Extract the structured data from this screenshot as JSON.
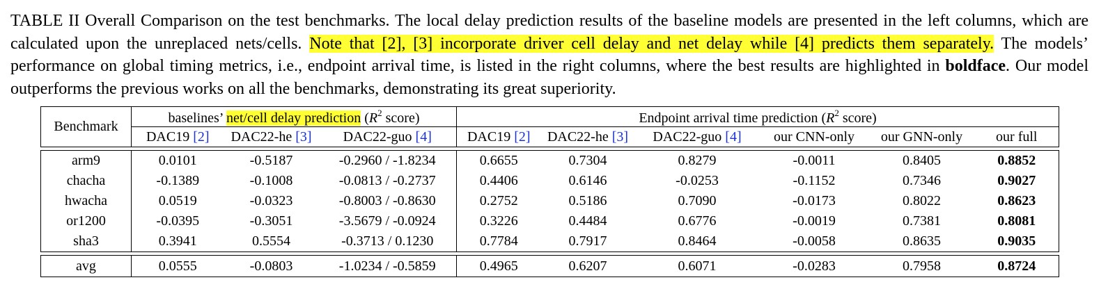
{
  "caption": {
    "part1": "TABLE II Overall Comparison on the test benchmarks. The local delay prediction results of the baseline models are presented in the left columns, which are calculated upon the unreplaced nets/cells. ",
    "highlight": "Note that [2], [3] incorporate driver cell delay and net delay while [4] predicts them separately.",
    "part2": " The models’ performance on global timing metrics, i.e., endpoint arrival time, is listed in the right columns, where the best results are highlighted in ",
    "bold": "boldface",
    "part3": ". Our model outperforms the previous works on all the benchmarks, demonstrating its great superiority."
  },
  "table": {
    "benchmark_header": "Benchmark",
    "group1": {
      "prefix": "baselines’ ",
      "highlight": "net/cell delay prediction",
      "suffix_open": " (",
      "r": "R",
      "sup": "2",
      "suffix_close": " score)"
    },
    "group2": {
      "prefix": "Endpoint arrival time prediction (",
      "r": "R",
      "sup": "2",
      "suffix_close": " score)"
    },
    "columns": [
      {
        "name": "DAC19 ",
        "cite": "[2]"
      },
      {
        "name": "DAC22-he ",
        "cite": "[3]"
      },
      {
        "name": "DAC22-guo ",
        "cite": "[4]"
      },
      {
        "name": "DAC19 ",
        "cite": "[2]"
      },
      {
        "name": "DAC22-he ",
        "cite": "[3]"
      },
      {
        "name": "DAC22-guo ",
        "cite": "[4]"
      },
      {
        "name": "our CNN-only",
        "cite": ""
      },
      {
        "name": "our GNN-only",
        "cite": ""
      },
      {
        "name": "our full",
        "cite": ""
      }
    ],
    "rows": [
      {
        "name": "arm9",
        "values": [
          "0.0101",
          "-0.5187",
          "-0.2960 / -1.8234",
          "0.6655",
          "0.7304",
          "0.8279",
          "-0.0011",
          "0.8405",
          "0.8852"
        ]
      },
      {
        "name": "chacha",
        "values": [
          "-0.1389",
          "-0.1008",
          "-0.0813 / -0.2737",
          "0.4406",
          "0.6146",
          "-0.0253",
          "-0.1152",
          "0.7346",
          "0.9027"
        ]
      },
      {
        "name": "hwacha",
        "values": [
          "0.0519",
          "-0.0323",
          "-0.8003 / -0.8630",
          "0.2752",
          "0.5186",
          "0.7090",
          "-0.0173",
          "0.8022",
          "0.8623"
        ]
      },
      {
        "name": "or1200",
        "values": [
          "-0.0395",
          "-0.3051",
          "-3.5679 / -0.0924",
          "0.3226",
          "0.4484",
          "0.6776",
          "-0.0019",
          "0.7381",
          "0.8081"
        ]
      },
      {
        "name": "sha3",
        "values": [
          "0.3941",
          "0.5554",
          "-0.3713 / 0.1230",
          "0.7784",
          "0.7917",
          "0.8464",
          "-0.0058",
          "0.8635",
          "0.9035"
        ]
      }
    ],
    "avg": {
      "name": "avg",
      "values": [
        "0.0555",
        "-0.0803",
        "-1.0234 / -0.5859",
        "0.4965",
        "0.6207",
        "0.6071",
        "-0.0283",
        "0.7958",
        "0.8724"
      ]
    }
  }
}
